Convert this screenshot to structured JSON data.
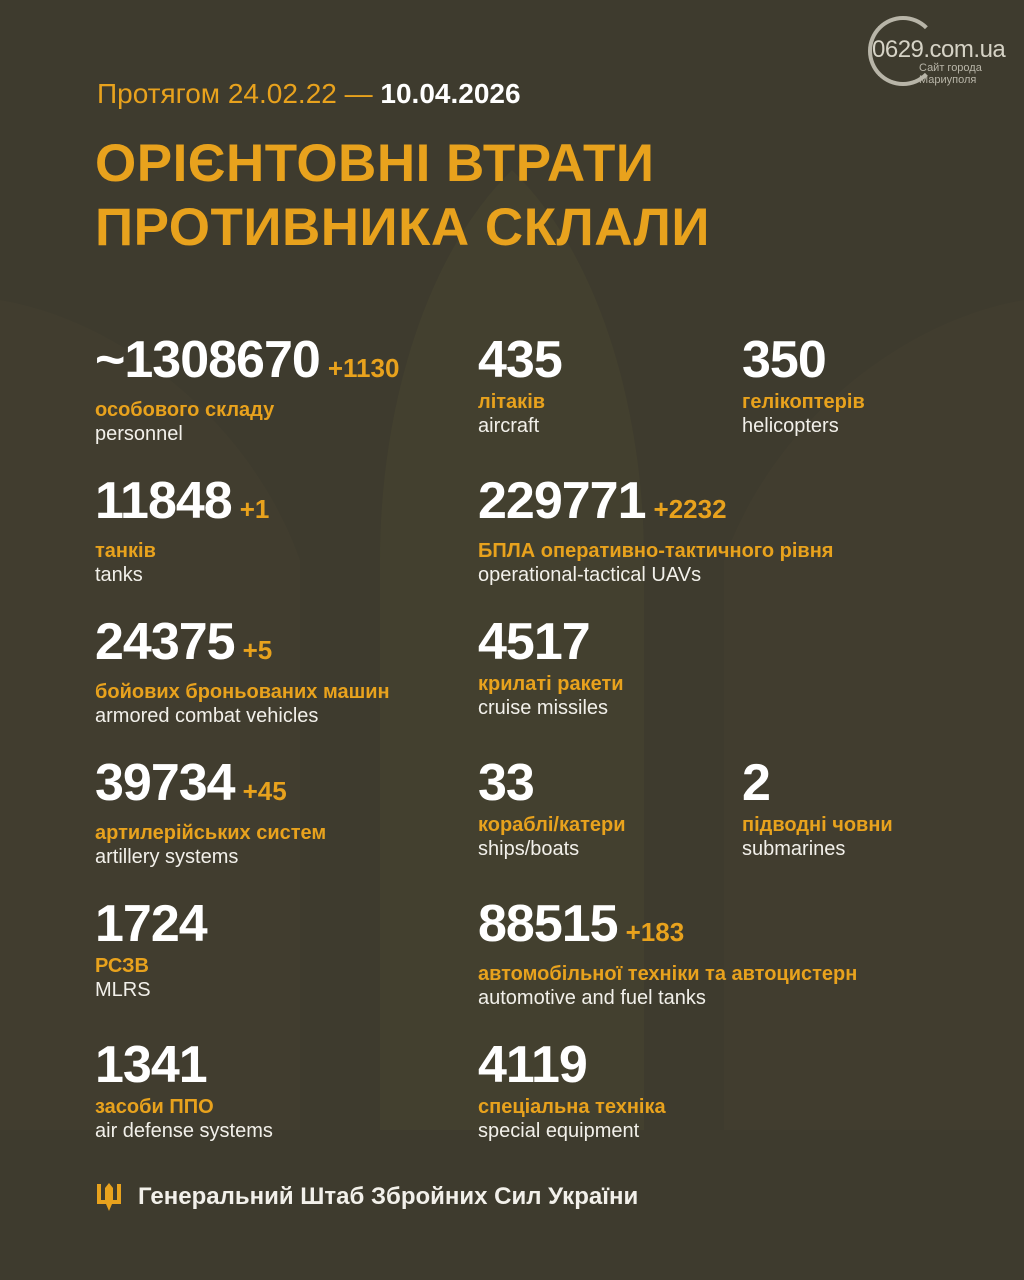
{
  "logo": {
    "main": "0629.com.ua",
    "sub_line1": "Сайт города",
    "sub_line2": "Мариуполя"
  },
  "header": {
    "period_prefix": "Протягом 24.02.22 —",
    "period_date": "10.04.2026",
    "title_line1": "ОРІЄНТОВНІ ВТРАТИ",
    "title_line2": "ПРОТИВНИКА СКЛАЛИ"
  },
  "colors": {
    "background": "#3e3b2e",
    "accent": "#e8a21d",
    "text": "#ffffff"
  },
  "stats": [
    {
      "value": "~1308670",
      "increase": "+1130",
      "label_ua": "особового складу",
      "label_en": "personnel"
    },
    {
      "value": "435",
      "increase": "",
      "label_ua": "літаків",
      "label_en": "aircraft"
    },
    {
      "value": "350",
      "increase": "",
      "label_ua": "гелікоптерів",
      "label_en": "helicopters"
    },
    {
      "value": "11848",
      "increase": "+1",
      "label_ua": "танків",
      "label_en": "tanks"
    },
    {
      "value": "229771",
      "increase": "+2232",
      "label_ua": "БПЛА оперативно-тактичного рівня",
      "label_en": "operational-tactical UAVs"
    },
    {
      "value": "24375",
      "increase": "+5",
      "label_ua": "бойових броньованих машин",
      "label_en": "armored combat vehicles"
    },
    {
      "value": "4517",
      "increase": "",
      "label_ua": "крилаті ракети",
      "label_en": "cruise missiles"
    },
    {
      "value": "39734",
      "increase": "+45",
      "label_ua": "артилерійських систем",
      "label_en": "artillery systems"
    },
    {
      "value": "33",
      "increase": "",
      "label_ua": "кораблі/катери",
      "label_en": "ships/boats"
    },
    {
      "value": "2",
      "increase": "",
      "label_ua": "підводні човни",
      "label_en": "submarines"
    },
    {
      "value": "1724",
      "increase": "",
      "label_ua": "РСЗВ",
      "label_en": "MLRS"
    },
    {
      "value": "88515",
      "increase": "+183",
      "label_ua": "автомобільної техніки та автоцистерн",
      "label_en": "automotive and fuel tanks"
    },
    {
      "value": "1341",
      "increase": "",
      "label_ua": "засоби ППО",
      "label_en": "air defense systems"
    },
    {
      "value": "4119",
      "increase": "",
      "label_ua": "спеціальна техніка",
      "label_en": "special equipment"
    }
  ],
  "footer": {
    "icon": "trident-icon",
    "text": "Генеральний Штаб Збройних Сил України"
  }
}
